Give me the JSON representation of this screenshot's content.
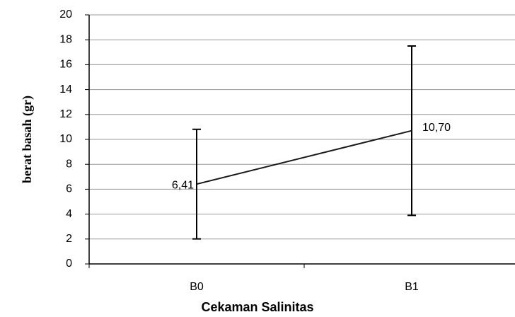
{
  "chart_data": {
    "type": "line",
    "x_label": "Cekaman Salinitas",
    "y_label": "berat basah (gr)",
    "categories": [
      "B0",
      "B1"
    ],
    "series": [
      {
        "name": null,
        "color": "#1a1a1a",
        "values": [
          6.41,
          10.7
        ],
        "value_labels": [
          "6,41",
          "10,70"
        ],
        "errors": [
          4.4,
          6.8
        ]
      }
    ],
    "ylim": [
      0,
      20
    ],
    "yticks": [
      0,
      2,
      4,
      6,
      8,
      10,
      12,
      14,
      16,
      18,
      20
    ],
    "grid": true
  }
}
